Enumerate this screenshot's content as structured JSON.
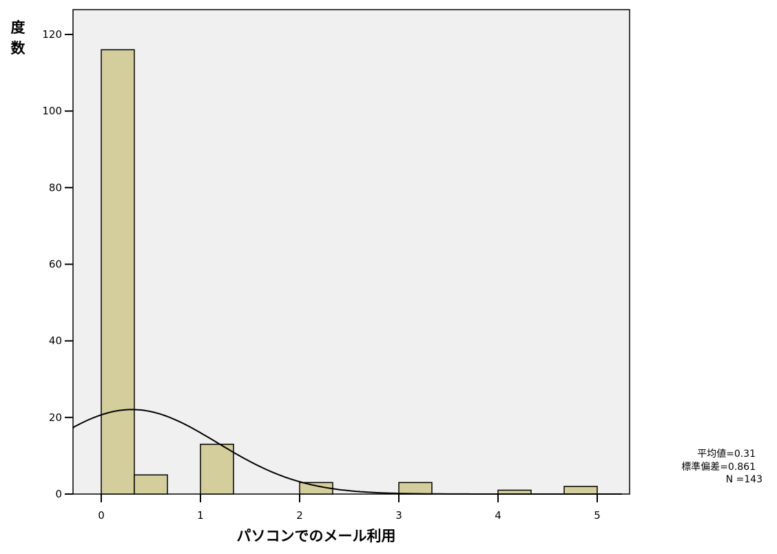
{
  "chart_data": {
    "type": "bar",
    "xlabel": "パソコンでのメール利用",
    "ylabel": "度数",
    "xlim": [
      -0.3,
      5.25
    ],
    "ylim": [
      0,
      127
    ],
    "x_ticks": [
      0,
      1,
      2,
      3,
      4,
      5
    ],
    "y_ticks": [
      0,
      20,
      40,
      60,
      80,
      100,
      120
    ],
    "bin_width": 0.333,
    "bins": [
      {
        "x0": 0.0,
        "x1": 0.333,
        "count": 116
      },
      {
        "x0": 0.333,
        "x1": 0.667,
        "count": 5
      },
      {
        "x0": 1.0,
        "x1": 1.333,
        "count": 13
      },
      {
        "x0": 2.0,
        "x1": 2.333,
        "count": 3
      },
      {
        "x0": 3.0,
        "x1": 3.333,
        "count": 3
      },
      {
        "x0": 4.0,
        "x1": 4.333,
        "count": 1
      },
      {
        "x0": 4.667,
        "x1": 5.0,
        "count": 2
      }
    ],
    "normal_curve": {
      "mean": 0.31,
      "sd": 0.861,
      "n": 143
    },
    "stats": {
      "mean_text": "平均値=0.31",
      "sd_text": "標準偏差=0.861",
      "n_text": "N =143"
    },
    "grid": false,
    "colors": {
      "plot_background": "#f0f0f0",
      "bar_fill": "#d3ce9c",
      "bar_stroke": "#000000",
      "curve": "#000000"
    }
  }
}
